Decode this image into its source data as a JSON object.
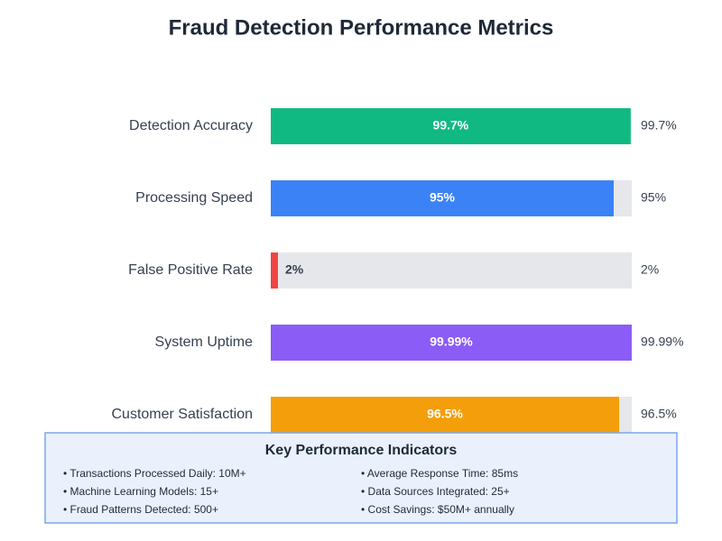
{
  "chart_data": {
    "type": "bar",
    "horizontal": true,
    "title": "Fraud Detection Performance Metrics",
    "categories": [
      "Detection Accuracy",
      "Processing Speed",
      "False Positive Rate",
      "System Uptime",
      "Customer Satisfaction"
    ],
    "values": [
      99.7,
      95,
      2,
      99.99,
      96.5
    ],
    "value_labels": [
      "99.7%",
      "95%",
      "2%",
      "99.99%",
      "96.5%"
    ],
    "colors": [
      "#10b981",
      "#3b82f6",
      "#ef4444",
      "#8b5cf6",
      "#f59e0b"
    ],
    "xlim": [
      0,
      100
    ]
  },
  "kpi": {
    "title": "Key Performance Indicators",
    "items": [
      "• Transactions Processed Daily: 10M+",
      "• Machine Learning Models: 15+",
      "• Fraud Patterns Detected: 500+",
      "• Average Response Time: 85ms",
      "• Data Sources Integrated: 25+",
      "• Cost Savings: $50M+ annually"
    ]
  }
}
